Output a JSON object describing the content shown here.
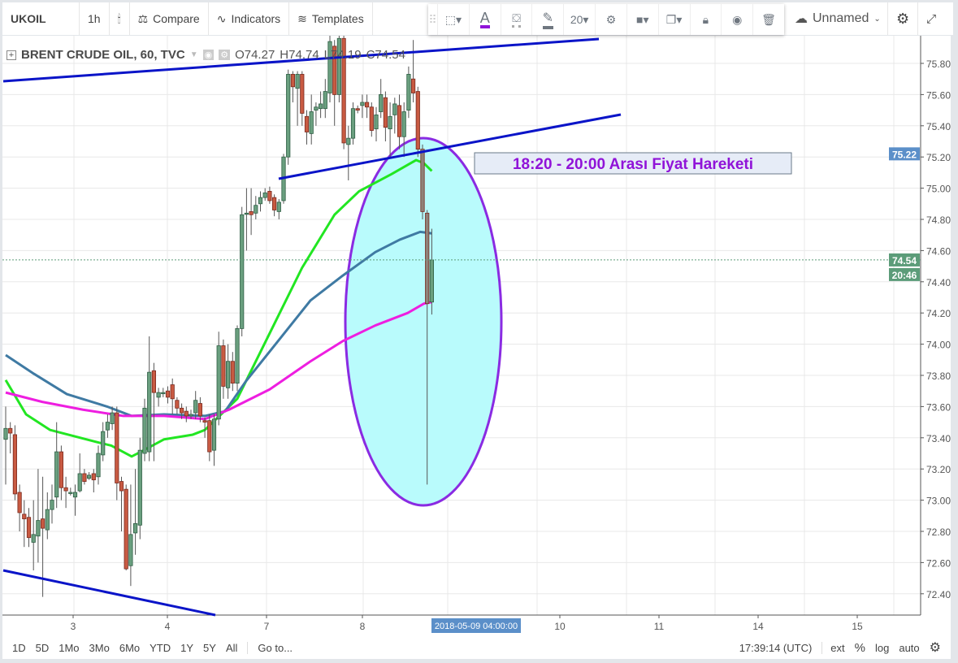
{
  "toolbar": {
    "symbol": "UKOIL",
    "interval": "1h",
    "compare": "Compare",
    "indicators": "Indicators",
    "templates": "Templates",
    "layout_name": "Unnamed",
    "icons": [
      "candles-icon",
      "compare-icon",
      "indicators-icon",
      "templates-icon",
      "cloud-icon",
      "gear-icon",
      "fullscreen-icon"
    ]
  },
  "drawing_toolbar": {
    "font_size": "20",
    "text_color": "#9013d8",
    "icons": [
      "selection-icon",
      "text-color-icon",
      "fill-icon",
      "pencil-icon",
      "settings-icon",
      "layer-icon",
      "clone-icon",
      "lock-icon",
      "eye-icon",
      "trash-icon"
    ]
  },
  "legend": {
    "title": "BRENT CRUDE OIL, 60, TVC",
    "open": "O74.27",
    "high": "H74.74",
    "low": "L74.19",
    "close": "C74.54"
  },
  "price_axis": {
    "ticks": [
      "75.80",
      "75.60",
      "75.40",
      "75.20",
      "75.00",
      "74.80",
      "74.60",
      "74.40",
      "74.20",
      "74.00",
      "73.80",
      "73.60",
      "73.40",
      "73.20",
      "73.00",
      "72.80",
      "72.60",
      "72.40"
    ],
    "marker_price": "75.22",
    "last_price": "74.54",
    "countdown": "20:46",
    "marker_color": "#5b8fc9",
    "last_color": "#5c9c79"
  },
  "time_axis": {
    "ticks": [
      "3",
      "4",
      "7",
      "8",
      "10",
      "11",
      "14",
      "15"
    ],
    "cursor_label": "2018-05-09 04:00:00"
  },
  "annotation": {
    "text": "18:20 - 20:00 Arası Fiyat Hareketi",
    "color": "#9013d8"
  },
  "colors": {
    "up": "#6a9f7f",
    "down": "#c85a42",
    "selected": "#8f8178",
    "ma_fast": "#22e622",
    "ma_mid": "#3f7aa3",
    "ma_slow": "#ee1ee0",
    "trend": "#0a14c8",
    "ellipse_fill": "#b9fbfc",
    "ellipse_stroke": "#8a2be2"
  },
  "candles": [
    [
      73.39,
      73.6,
      73.1,
      73.46
    ],
    [
      73.46,
      73.5,
      73.3,
      73.43
    ],
    [
      73.42,
      73.48,
      73.0,
      73.04
    ],
    [
      73.05,
      73.1,
      72.8,
      72.92
    ],
    [
      72.91,
      73.0,
      72.7,
      72.88
    ],
    [
      72.89,
      72.95,
      72.7,
      72.76
    ],
    [
      72.73,
      73.0,
      72.55,
      72.78
    ],
    [
      72.77,
      73.2,
      72.6,
      72.87
    ],
    [
      72.88,
      73.15,
      72.38,
      72.82
    ],
    [
      72.81,
      73.05,
      72.75,
      72.94
    ],
    [
      72.94,
      73.1,
      72.85,
      73.0
    ],
    [
      73.02,
      73.5,
      72.95,
      73.31
    ],
    [
      73.31,
      73.35,
      73.0,
      73.08
    ],
    [
      73.08,
      73.15,
      72.95,
      73.06
    ],
    [
      73.05,
      73.08,
      73.03,
      73.05
    ],
    [
      73.02,
      73.1,
      72.9,
      73.05
    ],
    [
      73.06,
      73.3,
      73.05,
      73.17
    ],
    [
      73.17,
      73.2,
      73.1,
      73.12
    ],
    [
      73.14,
      73.18,
      73.13,
      73.16
    ],
    [
      73.17,
      73.2,
      73.05,
      73.13
    ],
    [
      73.15,
      73.35,
      73.1,
      73.3
    ],
    [
      73.29,
      73.5,
      73.25,
      73.44
    ],
    [
      73.45,
      73.55,
      73.4,
      73.5
    ],
    [
      73.49,
      73.6,
      73.45,
      73.56
    ],
    [
      73.56,
      73.6,
      73.0,
      73.11
    ],
    [
      73.12,
      73.15,
      72.8,
      73.06
    ],
    [
      73.07,
      73.1,
      72.55,
      72.56
    ],
    [
      72.58,
      73.1,
      72.45,
      72.78
    ],
    [
      72.79,
      73.2,
      72.65,
      72.85
    ],
    [
      72.84,
      73.4,
      72.75,
      73.32
    ],
    [
      73.3,
      73.65,
      73.25,
      73.59
    ],
    [
      73.31,
      74.05,
      73.25,
      73.82
    ],
    [
      73.83,
      73.88,
      73.25,
      73.69
    ],
    [
      73.66,
      73.72,
      73.6,
      73.69
    ],
    [
      73.69,
      73.72,
      73.66,
      73.69
    ],
    [
      73.7,
      73.73,
      73.62,
      73.66
    ],
    [
      73.74,
      73.78,
      73.55,
      73.65
    ],
    [
      73.64,
      73.66,
      73.55,
      73.59
    ],
    [
      73.59,
      73.62,
      73.52,
      73.56
    ],
    [
      73.57,
      73.6,
      73.5,
      73.54
    ],
    [
      73.54,
      73.58,
      73.52,
      73.55
    ],
    [
      73.56,
      73.7,
      73.52,
      73.64
    ],
    [
      73.62,
      73.66,
      73.5,
      73.54
    ],
    [
      73.51,
      73.53,
      73.4,
      73.5
    ],
    [
      73.51,
      73.55,
      73.25,
      73.31
    ],
    [
      73.32,
      73.55,
      73.22,
      73.52
    ],
    [
      73.52,
      74.08,
      73.48,
      73.99
    ],
    [
      73.99,
      74.03,
      73.65,
      73.73
    ],
    [
      73.72,
      74.0,
      73.65,
      73.89
    ],
    [
      73.89,
      73.95,
      73.7,
      73.75
    ],
    [
      73.75,
      74.12,
      73.7,
      74.1
    ],
    [
      74.1,
      74.88,
      74.05,
      74.83
    ],
    [
      74.84,
      75.0,
      74.6,
      74.84
    ],
    [
      74.85,
      75.0,
      74.7,
      74.83
    ],
    [
      74.84,
      74.95,
      74.8,
      74.89
    ],
    [
      74.9,
      74.98,
      74.85,
      74.94
    ],
    [
      74.94,
      75.0,
      74.92,
      74.97
    ],
    [
      74.98,
      75.01,
      74.9,
      74.92
    ],
    [
      74.94,
      74.96,
      74.82,
      74.86
    ],
    [
      74.85,
      74.93,
      74.8,
      74.91
    ],
    [
      74.92,
      75.22,
      74.9,
      75.2
    ],
    [
      75.2,
      75.76,
      75.15,
      75.73
    ],
    [
      75.73,
      75.75,
      75.55,
      75.65
    ],
    [
      75.64,
      75.75,
      75.4,
      75.73
    ],
    [
      75.73,
      75.75,
      75.4,
      75.48
    ],
    [
      75.46,
      75.5,
      75.28,
      75.36
    ],
    [
      75.35,
      75.6,
      75.28,
      75.49
    ],
    [
      75.5,
      75.55,
      75.4,
      75.52
    ],
    [
      75.51,
      75.62,
      75.45,
      75.54
    ],
    [
      75.51,
      75.7,
      75.45,
      75.62
    ],
    [
      75.61,
      76.0,
      75.55,
      75.94
    ],
    [
      75.91,
      75.95,
      75.4,
      75.6
    ],
    [
      75.6,
      76.05,
      75.55,
      75.96
    ],
    [
      75.96,
      76.05,
      75.25,
      75.29
    ],
    [
      75.28,
      75.4,
      75.05,
      75.32
    ],
    [
      75.32,
      75.55,
      75.28,
      75.51
    ],
    [
      75.51,
      75.53,
      75.48,
      75.5
    ],
    [
      75.53,
      75.6,
      75.45,
      75.55
    ],
    [
      75.55,
      75.6,
      75.45,
      75.52
    ],
    [
      75.52,
      75.55,
      75.33,
      75.37
    ],
    [
      75.38,
      75.52,
      75.3,
      75.47
    ],
    [
      75.49,
      75.7,
      75.45,
      75.6
    ],
    [
      75.58,
      75.62,
      75.3,
      75.39
    ],
    [
      75.38,
      75.55,
      75.2,
      75.46
    ],
    [
      75.47,
      75.58,
      75.35,
      75.54
    ],
    [
      75.53,
      75.6,
      75.25,
      75.33
    ],
    [
      75.33,
      75.55,
      75.2,
      75.49
    ],
    [
      75.5,
      75.78,
      75.45,
      75.73
    ],
    [
      75.7,
      75.95,
      75.55,
      75.61
    ],
    [
      75.62,
      75.65,
      75.2,
      75.25
    ],
    [
      75.25,
      75.28,
      74.8,
      74.85
    ],
    [
      74.84,
      74.86,
      73.1,
      74.26
    ],
    [
      74.27,
      74.74,
      74.19,
      74.54
    ]
  ],
  "moving_averages": {
    "fast": [
      [
        0,
        73.77
      ],
      [
        4.4,
        73.55
      ],
      [
        9.6,
        73.45
      ],
      [
        20,
        73.37
      ],
      [
        22.8,
        73.35
      ],
      [
        27.2,
        73.28
      ],
      [
        29.8,
        73.32
      ],
      [
        34.2,
        73.39
      ],
      [
        40.4,
        73.42
      ],
      [
        43,
        73.45
      ],
      [
        46.5,
        73.55
      ],
      [
        50,
        73.65
      ],
      [
        57,
        74.07
      ],
      [
        64,
        74.49
      ],
      [
        71,
        74.83
      ],
      [
        76.3,
        74.98
      ],
      [
        83.3,
        75.09
      ],
      [
        88.6,
        75.18
      ],
      [
        90.3,
        75.16
      ],
      [
        92,
        75.11
      ]
    ],
    "mid": [
      [
        0,
        73.93
      ],
      [
        6.1,
        73.81
      ],
      [
        13.2,
        73.68
      ],
      [
        21.9,
        73.6
      ],
      [
        27.2,
        73.54
      ],
      [
        34.2,
        73.55
      ],
      [
        43,
        73.54
      ],
      [
        47.4,
        73.57
      ],
      [
        51.8,
        73.76
      ],
      [
        58.8,
        74.02
      ],
      [
        65.8,
        74.28
      ],
      [
        72.8,
        74.44
      ],
      [
        79.8,
        74.59
      ],
      [
        85.1,
        74.67
      ],
      [
        89.5,
        74.72
      ],
      [
        92,
        74.71
      ]
    ],
    "slow": [
      [
        0,
        73.69
      ],
      [
        7.9,
        73.63
      ],
      [
        16.7,
        73.58
      ],
      [
        25.4,
        73.54
      ],
      [
        34.2,
        73.54
      ],
      [
        43,
        73.52
      ],
      [
        48.2,
        73.58
      ],
      [
        57,
        73.71
      ],
      [
        65.8,
        73.89
      ],
      [
        72.8,
        74.02
      ],
      [
        79.8,
        74.12
      ],
      [
        86.8,
        74.2
      ],
      [
        90.3,
        74.26
      ],
      [
        92,
        74.27
      ]
    ]
  },
  "bottom_bar": {
    "ranges": [
      "1D",
      "5D",
      "1Mo",
      "3Mo",
      "6Mo",
      "YTD",
      "1Y",
      "5Y",
      "All"
    ],
    "goto": "Go to...",
    "clock": "17:39:14 (UTC)",
    "ext": "ext",
    "percent": "%",
    "log": "log",
    "auto": "auto"
  }
}
